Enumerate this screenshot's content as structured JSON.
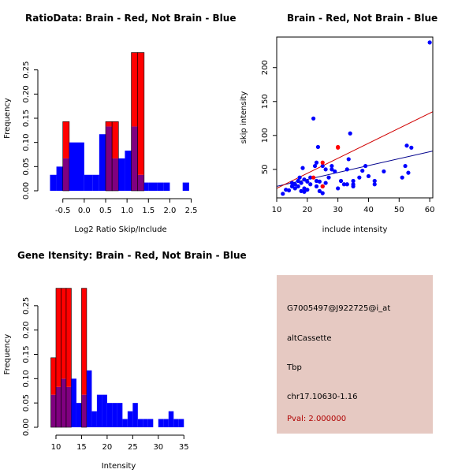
{
  "colors": {
    "blue": "#0000ff",
    "red": "#ff0000",
    "overlap": "#800080",
    "panel_bg": "#e6c9c2",
    "pval_text": "#b00000",
    "fit_blue": "#00008b",
    "fit_red": "#d00000"
  },
  "chart_data": [
    {
      "type": "histogram",
      "title": "RatioData: Brain - Red, Not Brain - Blue",
      "xlabel": "Log2 Ratio Skip/Include",
      "ylabel": "Frequency",
      "xlim": [
        -0.9,
        2.6
      ],
      "ylim": [
        0,
        0.3
      ],
      "xticks": [
        "-0.5",
        "0.0",
        "0.5",
        "1.0",
        "1.5",
        "2.0",
        "2.5"
      ],
      "xtick_values": [
        -0.5,
        0.0,
        0.5,
        1.0,
        1.5,
        2.0,
        2.5
      ],
      "yticks": [
        "0.00",
        "0.05",
        "0.10",
        "0.15",
        "0.20",
        "0.25"
      ],
      "ytick_values": [
        0.0,
        0.05,
        0.1,
        0.15,
        0.2,
        0.25
      ],
      "bins": [
        -0.8,
        -0.65,
        -0.5,
        -0.35,
        -0.2,
        0.0,
        0.2,
        0.35,
        0.5,
        0.65,
        0.8,
        0.95,
        1.1,
        1.25,
        1.4,
        1.5,
        1.7,
        1.85,
        2.0,
        2.15,
        2.3,
        2.45,
        2.6
      ],
      "series": [
        {
          "name": "Not Brain",
          "color": "blue",
          "values": [
            0.033,
            0.05,
            0.067,
            0.1,
            0.1,
            0.033,
            0.033,
            0.117,
            0.133,
            0.067,
            0.067,
            0.083,
            0.133,
            0.033,
            0.017,
            0.017,
            0.017,
            0.017,
            0,
            0,
            0.017,
            0
          ]
        },
        {
          "name": "Brain",
          "color": "red",
          "values": [
            0,
            0,
            0.143,
            0,
            0,
            0,
            0,
            0,
            0.143,
            0.143,
            0,
            0,
            0.286,
            0.286,
            0,
            0,
            0,
            0,
            0,
            0,
            0,
            0
          ]
        }
      ]
    },
    {
      "type": "scatter",
      "title": "Brain - Red, Not Brain - Blue",
      "xlabel": "include intensity",
      "ylabel": "skip intensity",
      "xlim": [
        10,
        61
      ],
      "ylim": [
        8,
        245
      ],
      "xticks": [
        "10",
        "20",
        "30",
        "40",
        "50",
        "60"
      ],
      "xtick_values": [
        10,
        20,
        30,
        40,
        50,
        60
      ],
      "yticks": [
        "50",
        "100",
        "150",
        "200"
      ],
      "ytick_values": [
        50,
        100,
        150,
        200
      ],
      "fit_lines": [
        {
          "name": "Not Brain fit",
          "color": "fit_blue",
          "x": [
            10,
            61
          ],
          "y": [
            25,
            77
          ]
        },
        {
          "name": "Brain fit",
          "color": "fit_red",
          "x": [
            10,
            61
          ],
          "y": [
            22,
            135
          ]
        }
      ],
      "series": [
        {
          "name": "Not Brain",
          "color": "blue",
          "points": [
            [
              12,
              14
            ],
            [
              13,
              20
            ],
            [
              14,
              19
            ],
            [
              15,
              30
            ],
            [
              15,
              25
            ],
            [
              16,
              28
            ],
            [
              16,
              22
            ],
            [
              17,
              33
            ],
            [
              17,
              25
            ],
            [
              17.5,
              38
            ],
            [
              18,
              18
            ],
            [
              18,
              30
            ],
            [
              18.5,
              52
            ],
            [
              19,
              22
            ],
            [
              19,
              17
            ],
            [
              19,
              35
            ],
            [
              20,
              20
            ],
            [
              20,
              32
            ],
            [
              21,
              38
            ],
            [
              21,
              28
            ],
            [
              22,
              125
            ],
            [
              22.5,
              55
            ],
            [
              23,
              33
            ],
            [
              23,
              25
            ],
            [
              23,
              60
            ],
            [
              23.5,
              83
            ],
            [
              24,
              18
            ],
            [
              24,
              32
            ],
            [
              25,
              55
            ],
            [
              25,
              25
            ],
            [
              25,
              15
            ],
            [
              26,
              30
            ],
            [
              26,
              50
            ],
            [
              27,
              38
            ],
            [
              28,
              55
            ],
            [
              28,
              50
            ],
            [
              29,
              47
            ],
            [
              30,
              22
            ],
            [
              31,
              33
            ],
            [
              32,
              28
            ],
            [
              33,
              28
            ],
            [
              33,
              50
            ],
            [
              33.5,
              65
            ],
            [
              34,
              103
            ],
            [
              35,
              28
            ],
            [
              35,
              33
            ],
            [
              35,
              25
            ],
            [
              37,
              38
            ],
            [
              38,
              48
            ],
            [
              39,
              55
            ],
            [
              40,
              40
            ],
            [
              42,
              33
            ],
            [
              42,
              28
            ],
            [
              45,
              47
            ],
            [
              51,
              38
            ],
            [
              52,
              55
            ],
            [
              52.5,
              85
            ],
            [
              53,
              45
            ],
            [
              54,
              82
            ],
            [
              60,
              237
            ]
          ]
        },
        {
          "name": "Brain",
          "color": "red",
          "points": [
            [
              22,
              38
            ],
            [
              25,
              60
            ],
            [
              25,
              25
            ],
            [
              30,
              83
            ],
            [
              30,
              82
            ]
          ]
        }
      ]
    },
    {
      "type": "histogram",
      "title": "Gene Itensity: Brain - Red, Not Brain - Blue",
      "xlabel": "Intensity",
      "ylabel": "Frequency",
      "xlim": [
        8,
        36.5
      ],
      "ylim": [
        0,
        0.3
      ],
      "xticks": [
        "10",
        "15",
        "20",
        "25",
        "30",
        "35"
      ],
      "xtick_values": [
        10,
        15,
        20,
        25,
        30,
        35
      ],
      "yticks": [
        "0.00",
        "0.05",
        "0.10",
        "0.15",
        "0.20",
        "0.25"
      ],
      "ytick_values": [
        0.0,
        0.05,
        0.1,
        0.15,
        0.2,
        0.25
      ],
      "bins": [
        9,
        10,
        11,
        12,
        13,
        14,
        15,
        16,
        17,
        18,
        19,
        20,
        21,
        22,
        23,
        24,
        25,
        26,
        27,
        28,
        29,
        30,
        31,
        32,
        33,
        34,
        35
      ],
      "series": [
        {
          "name": "Not Brain",
          "color": "blue",
          "values": [
            0.067,
            0.083,
            0.1,
            0.083,
            0.1,
            0.05,
            0.067,
            0.117,
            0.033,
            0.067,
            0.067,
            0.05,
            0.05,
            0.05,
            0.017,
            0.033,
            0.05,
            0.017,
            0.017,
            0.017,
            0,
            0.017,
            0.017,
            0.033,
            0.017,
            0.017
          ]
        },
        {
          "name": "Brain",
          "color": "red",
          "values": [
            0.143,
            0.286,
            0.286,
            0.286,
            0,
            0,
            0.286,
            0,
            0,
            0,
            0,
            0,
            0,
            0,
            0,
            0,
            0,
            0,
            0,
            0,
            0,
            0,
            0,
            0,
            0,
            0
          ]
        }
      ]
    }
  ],
  "info": {
    "probe_id": "G7005497@J922725@i_at",
    "event_type": "altCassette",
    "gene": "Tbp",
    "location": "chr17.10630-1.16",
    "pval": "Pval: 2.000000"
  }
}
